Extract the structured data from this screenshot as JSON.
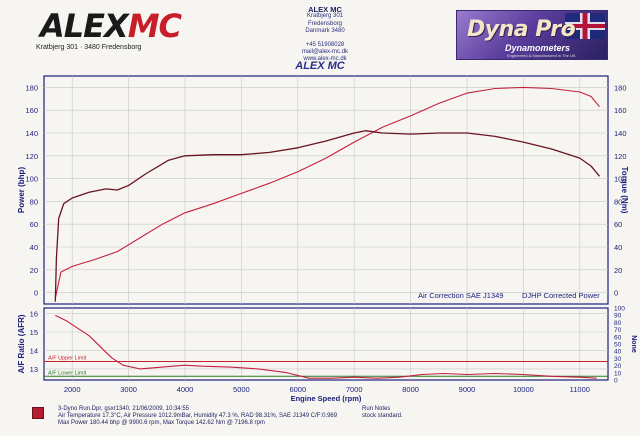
{
  "header": {
    "logo_left": {
      "word_a": "ALEX",
      "word_b": "MC",
      "address": "Kratbjerg 301  ·  3480 Fredensborg"
    },
    "contact": {
      "name": "ALEX MC",
      "street": "Kratbjerg 301",
      "city": "Fredensborg",
      "country_zip": "Danmark 3480",
      "phone": "+45 51908028",
      "mail": "mail@alex-mc.dk",
      "web": "www.alex-mc.dk"
    },
    "title": "ALEX MC",
    "logo_right": {
      "word": "Dyna Pro",
      "sub": "Dynamometers",
      "tiny": "Engineered & Manufactured in The UK"
    }
  },
  "colors": {
    "power": "#c4203c",
    "torque": "#6a1420",
    "afr": "#c4203c",
    "afr_upper_limit": "#c8202a",
    "afr_lower_limit": "#2a7a2a",
    "grid": "#c7c7c7",
    "frame": "#1b1f7a",
    "label_blue": "#1b1f7a"
  },
  "chart_data": [
    {
      "type": "line",
      "xlabel": "",
      "ylabel": "Power (bhp)",
      "y2label": "Torque (Nm)",
      "xlim": [
        1500,
        11500
      ],
      "ylim": [
        -10,
        190
      ],
      "y2lim": [
        -10,
        190
      ],
      "yticks": [
        0,
        20,
        40,
        60,
        80,
        100,
        120,
        140,
        160,
        180
      ],
      "y2ticks": [
        0,
        20,
        40,
        60,
        80,
        100,
        120,
        140,
        160,
        180
      ],
      "grid": true,
      "annotations": [
        "Air Correction SAE J1349",
        "DJHP Corrected Power"
      ],
      "series": [
        {
          "name": "Power",
          "axis": "left",
          "x": [
            1700,
            1800,
            2000,
            2400,
            2800,
            3200,
            3600,
            4000,
            4500,
            5000,
            5500,
            6000,
            6500,
            7000,
            7500,
            8000,
            8500,
            9000,
            9500,
            10000,
            10500,
            11000,
            11200,
            11350
          ],
          "y": [
            -5,
            18,
            23,
            29,
            36,
            48,
            60,
            70,
            78,
            87,
            96,
            106,
            118,
            132,
            145,
            155,
            166,
            175,
            179,
            180,
            179,
            176,
            172,
            163
          ]
        },
        {
          "name": "Torque",
          "axis": "right",
          "x": [
            1700,
            1720,
            1760,
            1850,
            2000,
            2300,
            2600,
            2800,
            3000,
            3300,
            3700,
            4000,
            4500,
            5000,
            5500,
            6000,
            6500,
            7000,
            7200,
            7500,
            8000,
            8500,
            9000,
            9500,
            10000,
            10500,
            11000,
            11200,
            11350
          ],
          "y": [
            -8,
            30,
            65,
            78,
            83,
            88,
            91,
            90,
            94,
            104,
            116,
            120,
            121,
            121,
            123,
            127,
            133,
            140,
            142,
            140,
            139,
            140,
            140,
            137,
            132,
            126,
            118,
            111,
            102
          ]
        }
      ]
    },
    {
      "type": "line",
      "xlabel": "Engine Speed (rpm)",
      "ylabel": "A/F Ratio (AFR)",
      "y2label": "None",
      "xlim": [
        1500,
        11500
      ],
      "ylim": [
        12.4,
        16.3
      ],
      "y2lim": [
        0,
        100
      ],
      "yticks": [
        13,
        14,
        15,
        16
      ],
      "y2ticks": [
        0,
        10,
        20,
        30,
        40,
        50,
        60,
        70,
        80,
        90,
        100
      ],
      "xticks": [
        2000,
        3000,
        4000,
        5000,
        6000,
        7000,
        8000,
        9000,
        10000,
        11000
      ],
      "grid": true,
      "limits": [
        {
          "label": "A/F Upper Limit",
          "value": 13.4
        },
        {
          "label": "A/F Lower Limit",
          "value": 12.6
        }
      ],
      "series": [
        {
          "name": "AFR",
          "x": [
            1700,
            1900,
            2100,
            2300,
            2500,
            2700,
            2900,
            3200,
            3600,
            4000,
            4300,
            4800,
            5300,
            5800,
            6200,
            6600,
            7000,
            7400,
            7800,
            8200,
            8600,
            9000,
            9500,
            10000,
            10500,
            11000,
            11300
          ],
          "y": [
            15.9,
            15.6,
            15.2,
            14.8,
            14.2,
            13.6,
            13.2,
            13.0,
            13.1,
            13.2,
            13.15,
            13.1,
            13.0,
            12.8,
            12.5,
            12.5,
            12.55,
            12.5,
            12.55,
            12.7,
            12.75,
            12.7,
            12.75,
            12.7,
            12.6,
            12.55,
            12.5
          ]
        }
      ]
    }
  ],
  "legend": {
    "line1": "3-Dyno Run.Dpr,    gsxr1340,    21/06/2009,    10:34:55",
    "line2": "Air Temperature 17.3°C, Air Pressure 1012.9mBar, Humidity 47.3 %, RAD 98.31%,    SAE J1349  C/F:0.969",
    "line3": "Max Power 180.44 bhp @ 9900.6 rpm, Max Torque 142.62 Nm @ 7196.8 rpm"
  },
  "run_notes": {
    "label": "Run Notes",
    "text": "stock standard."
  }
}
